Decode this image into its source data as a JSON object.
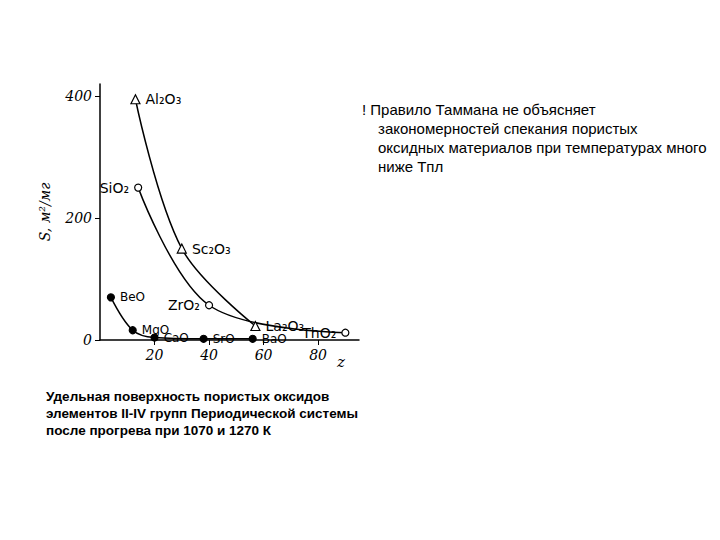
{
  "chart_data": {
    "type": "line",
    "x_label": "z",
    "y_label": "S, м²/мг",
    "xlim": [
      0,
      95
    ],
    "xticks": [
      20,
      40,
      60,
      80
    ],
    "ylim": [
      0,
      420
    ],
    "yticks": [
      0,
      200,
      400
    ],
    "grid": false,
    "series": [
      {
        "marker": "triangle",
        "color": "#000000",
        "x": [
          13,
          30,
          57
        ],
        "values": [
          395,
          150,
          23
        ],
        "labels": [
          "Al₂O₃",
          "Sc₂O₃",
          "La₂O₃"
        ]
      },
      {
        "marker": "circle",
        "color": "#000000",
        "x": [
          14,
          40,
          90
        ],
        "values": [
          250,
          57,
          12
        ],
        "labels": [
          "SiO₂",
          "ZrO₂",
          "ThO₂"
        ]
      },
      {
        "marker": "dot",
        "color": "#000000",
        "x": [
          4,
          12,
          20,
          38,
          56
        ],
        "values": [
          70,
          16,
          4,
          2,
          2
        ],
        "labels": [
          "BeO",
          "MgO",
          "CaO",
          "SrO",
          "BaO"
        ]
      }
    ],
    "annotation": "! Правило Таммана не объясняет закономерностей спекания пористых оксидных материалов при температурах много ниже Tпл",
    "caption": "Удельная поверхность пористых оксидов элементов II-IV групп Периодической системы после прогрева при 1070 и 1270 К"
  }
}
